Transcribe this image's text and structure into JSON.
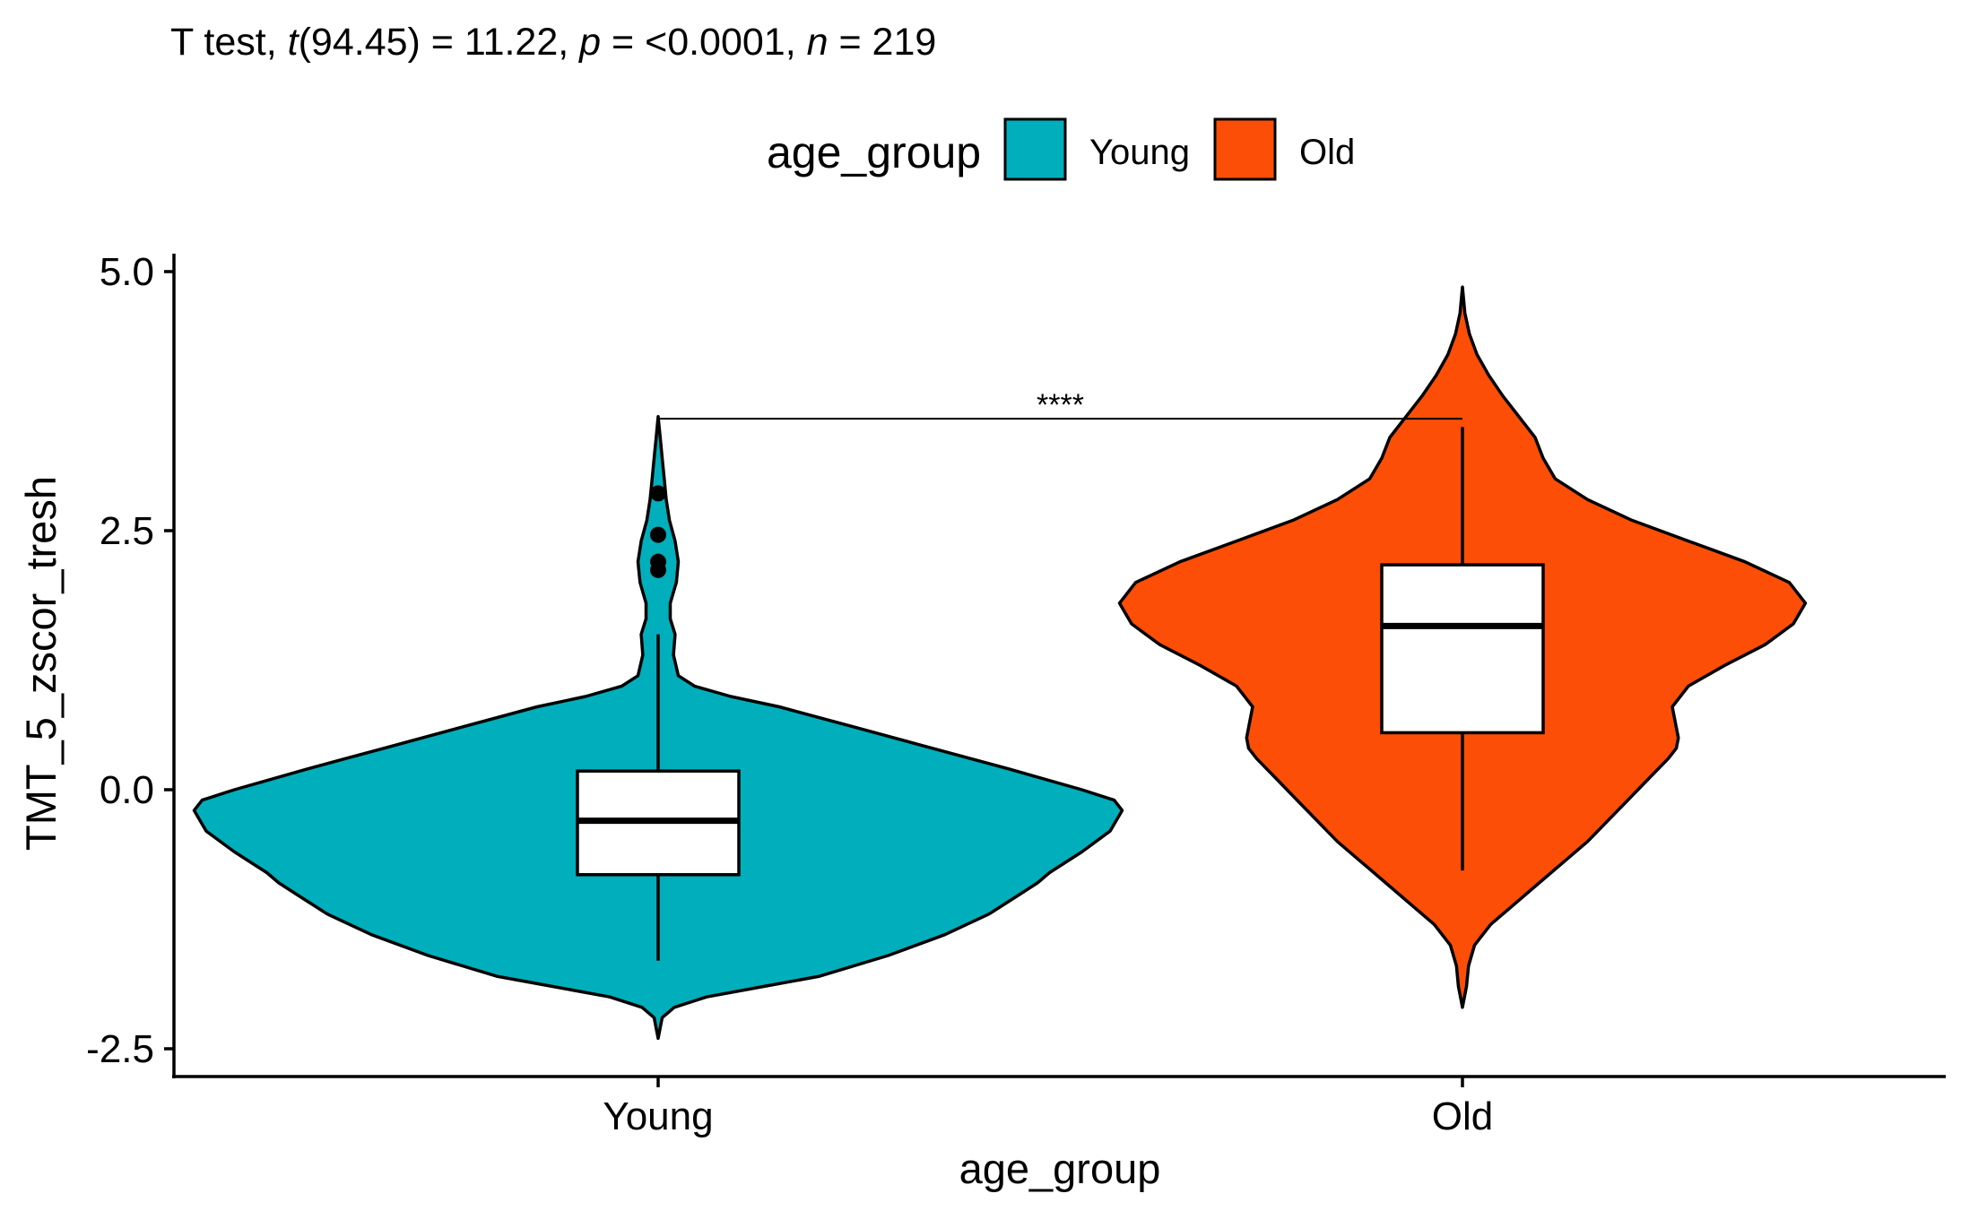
{
  "chart_data": {
    "type": "violin",
    "title": {
      "prefix": "T test, ",
      "t_symbol": "t",
      "t_value": "(94.45) = 11.22, ",
      "p_symbol": "p",
      "p_value": " = <0.0001, ",
      "n_symbol": "n",
      "n_value": " = 219"
    },
    "legend": {
      "title": "age_group",
      "position": "top",
      "entries": [
        {
          "label": "Young",
          "color": "#00AFBB"
        },
        {
          "label": "Old",
          "color": "#FC4E07"
        }
      ]
    },
    "xlabel": "age_group",
    "ylabel": "TMT_5_zscor_tresh",
    "categories": [
      "Young",
      "Old"
    ],
    "ylim": [
      -2.75,
      5.2
    ],
    "y_ticks": [
      -2.5,
      0.0,
      2.5,
      5.0
    ],
    "y_tick_labels": [
      "-2.5",
      "0.0",
      "2.5",
      "5.0"
    ],
    "grid": false,
    "series": [
      {
        "name": "Young",
        "color": "#00AFBB",
        "boxplot": {
          "q1": -0.82,
          "median": -0.3,
          "q3": 0.18,
          "whisker_low": -1.65,
          "whisker_high": 1.5
        },
        "outliers": [
          2.86,
          2.46,
          2.2,
          2.12
        ],
        "violin_range": [
          -2.4,
          3.6
        ],
        "density": [
          [
            -2.4,
            0.0
          ],
          [
            -2.2,
            0.01
          ],
          [
            -2.1,
            0.04
          ],
          [
            -2.0,
            0.12
          ],
          [
            -1.9,
            0.26
          ],
          [
            -1.8,
            0.4
          ],
          [
            -1.6,
            0.57
          ],
          [
            -1.4,
            0.71
          ],
          [
            -1.2,
            0.82
          ],
          [
            -1.0,
            0.9
          ],
          [
            -0.9,
            0.94
          ],
          [
            -0.8,
            0.97
          ],
          [
            -0.6,
            1.05
          ],
          [
            -0.4,
            1.12
          ],
          [
            -0.2,
            1.15
          ],
          [
            -0.1,
            1.13
          ],
          [
            0.0,
            1.05
          ],
          [
            0.2,
            0.87
          ],
          [
            0.4,
            0.68
          ],
          [
            0.6,
            0.49
          ],
          [
            0.8,
            0.3
          ],
          [
            0.9,
            0.18
          ],
          [
            1.0,
            0.09
          ],
          [
            1.1,
            0.05
          ],
          [
            1.3,
            0.038
          ],
          [
            1.5,
            0.042
          ],
          [
            1.65,
            0.03
          ],
          [
            1.8,
            0.03
          ],
          [
            2.0,
            0.045
          ],
          [
            2.2,
            0.05
          ],
          [
            2.4,
            0.042
          ],
          [
            2.6,
            0.028
          ],
          [
            2.8,
            0.02
          ],
          [
            3.0,
            0.015
          ],
          [
            3.2,
            0.01
          ],
          [
            3.4,
            0.005
          ],
          [
            3.6,
            0.0
          ]
        ]
      },
      {
        "name": "Old",
        "color": "#FC4E07",
        "boxplot": {
          "q1": 0.55,
          "median": 1.58,
          "q3": 2.17,
          "whisker_low": -0.78,
          "whisker_high": 3.5
        },
        "outliers": [],
        "violin_range": [
          -2.1,
          4.85
        ],
        "density": [
          [
            -2.1,
            0.0
          ],
          [
            -1.9,
            0.01
          ],
          [
            -1.7,
            0.015
          ],
          [
            -1.5,
            0.03
          ],
          [
            -1.3,
            0.07
          ],
          [
            -1.1,
            0.13
          ],
          [
            -0.9,
            0.19
          ],
          [
            -0.7,
            0.25
          ],
          [
            -0.5,
            0.31
          ],
          [
            -0.3,
            0.36
          ],
          [
            -0.1,
            0.41
          ],
          [
            0.1,
            0.46
          ],
          [
            0.3,
            0.51
          ],
          [
            0.4,
            0.53
          ],
          [
            0.5,
            0.535
          ],
          [
            0.6,
            0.53
          ],
          [
            0.8,
            0.52
          ],
          [
            1.0,
            0.56
          ],
          [
            1.2,
            0.65
          ],
          [
            1.4,
            0.75
          ],
          [
            1.6,
            0.82
          ],
          [
            1.8,
            0.85
          ],
          [
            2.0,
            0.81
          ],
          [
            2.2,
            0.7
          ],
          [
            2.4,
            0.56
          ],
          [
            2.6,
            0.42
          ],
          [
            2.8,
            0.31
          ],
          [
            3.0,
            0.23
          ],
          [
            3.2,
            0.2
          ],
          [
            3.4,
            0.18
          ],
          [
            3.6,
            0.14
          ],
          [
            3.8,
            0.1
          ],
          [
            4.0,
            0.065
          ],
          [
            4.2,
            0.036
          ],
          [
            4.4,
            0.017
          ],
          [
            4.6,
            0.006
          ],
          [
            4.85,
            0.0
          ]
        ]
      }
    ],
    "annotation": {
      "label": "****",
      "between": [
        "Young",
        "Old"
      ],
      "y": 3.58
    }
  }
}
